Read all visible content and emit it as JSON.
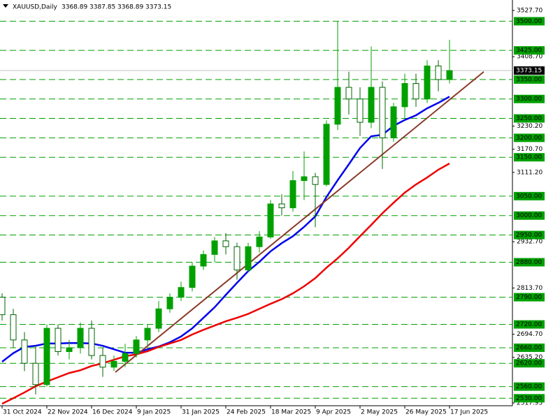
{
  "chart_data": {
    "type": "candlestick",
    "header": {
      "symbol": "XAUUSD,Daily",
      "ohlc": [
        3368.89,
        3387.85,
        3368.89,
        3373.15
      ]
    },
    "categories": [
      "31 Oct 2024",
      null,
      null,
      null,
      "22 Nov 2024",
      null,
      null,
      null,
      "16 Dec 2024",
      null,
      null,
      null,
      "9 Jan 2025",
      null,
      null,
      null,
      "31 Jan 2025",
      null,
      null,
      null,
      "24 Feb 2025",
      null,
      null,
      null,
      "18 Mar 2025",
      null,
      null,
      null,
      "9 Apr 2025",
      null,
      null,
      null,
      "2 May 2025",
      null,
      null,
      null,
      "26 May 2025",
      null,
      null,
      null,
      "17 Jun 2025"
    ],
    "open": [
      2790,
      2745,
      2680,
      2620,
      2565,
      2710,
      2650,
      2660,
      2710,
      2640,
      2610,
      2625,
      2645,
      2680,
      2710,
      2760,
      2790,
      2815,
      2870,
      2900,
      2935,
      2920,
      2860,
      2920,
      2945,
      3030,
      3020,
      3090,
      3100,
      3080,
      3235,
      3330,
      3300,
      3240,
      3330,
      3200,
      3280,
      3340,
      3300,
      3385,
      3350
    ],
    "high": [
      2800,
      2760,
      2700,
      2665,
      2720,
      2720,
      2680,
      2725,
      2730,
      2660,
      2640,
      2670,
      2690,
      2720,
      2780,
      2800,
      2830,
      2880,
      2910,
      2945,
      2955,
      2930,
      2930,
      2960,
      3040,
      3055,
      3115,
      3165,
      3110,
      3245,
      3500,
      3370,
      3330,
      3435,
      3345,
      3290,
      3365,
      3365,
      3400,
      3400,
      3452
    ],
    "low": [
      2730,
      2660,
      2600,
      2540,
      2560,
      2640,
      2630,
      2645,
      2630,
      2585,
      2600,
      2610,
      2635,
      2665,
      2700,
      2750,
      2780,
      2805,
      2860,
      2880,
      2900,
      2835,
      2855,
      2905,
      2940,
      3000,
      3010,
      3040,
      2970,
      3075,
      3220,
      3260,
      3205,
      3225,
      3120,
      3190,
      3250,
      3280,
      3290,
      3320,
      3340
    ],
    "close": [
      2745,
      2680,
      2620,
      2565,
      2710,
      2650,
      2660,
      2710,
      2640,
      2610,
      2625,
      2645,
      2680,
      2710,
      2760,
      2790,
      2815,
      2870,
      2900,
      2935,
      2920,
      2860,
      2920,
      2945,
      3030,
      3020,
      3090,
      3100,
      3080,
      3235,
      3330,
      3300,
      3240,
      3330,
      3200,
      3280,
      3340,
      3300,
      3385,
      3350,
      3373.15
    ],
    "up_color": "#00a000",
    "down_color": "#006400",
    "series": [
      {
        "color": "#0000ee",
        "values": [
          2624,
          2646,
          2662,
          2665,
          2671,
          2671,
          2672,
          2672,
          2671,
          2665,
          2656,
          2647,
          2647,
          2656,
          2663,
          2674,
          2689,
          2710,
          2737,
          2764,
          2796,
          2827,
          2857,
          2881,
          2908,
          2929,
          2947,
          2971,
          2998,
          3048,
          3091,
          3132,
          3174,
          3204,
          3208,
          3231,
          3246,
          3258,
          3276,
          3290,
          3306
        ]
      },
      {
        "color": "#ee0000",
        "values": [
          2516,
          2530,
          2545,
          2561,
          2573,
          2584,
          2595,
          2602,
          2613,
          2620,
          2629,
          2638,
          2643,
          2651,
          2662,
          2671,
          2680,
          2694,
          2706,
          2717,
          2728,
          2737,
          2747,
          2760,
          2773,
          2785,
          2800,
          2818,
          2839,
          2866,
          2890,
          2917,
          2947,
          2976,
          3006,
          3033,
          3059,
          3080,
          3098,
          3118,
          3134
        ]
      }
    ],
    "trendline": {
      "from": 2597,
      "to": 3370,
      "color": "#8b3a2a"
    },
    "current_price": 3373.15,
    "levels": [
      {
        "value": 3500,
        "label": "3500.00"
      },
      {
        "value": 3425,
        "label": "3425.00"
      },
      {
        "value": 3350,
        "label": "3350.00"
      },
      {
        "value": 3300,
        "label": "3300.00"
      },
      {
        "value": 3250,
        "label": "3250.00"
      },
      {
        "value": 3200,
        "label": "3200.00"
      },
      {
        "value": 3150,
        "label": "3150.00"
      },
      {
        "value": 3050,
        "label": "3050.00"
      },
      {
        "value": 3000,
        "label": "3000.00"
      },
      {
        "value": 2950,
        "label": "2950.00"
      },
      {
        "value": 2880,
        "label": "2880.00"
      },
      {
        "value": 2790,
        "label": "2790.00"
      },
      {
        "value": 2720,
        "label": "2720.00"
      },
      {
        "value": 2660,
        "label": "2660.00"
      },
      {
        "value": 2620,
        "label": "2620.00"
      },
      {
        "value": 2560,
        "label": "2560.00"
      },
      {
        "value": 2530,
        "label": "2530.00"
      }
    ],
    "level_color": "#00a000",
    "ylim": [
      2517.95,
      3527.7
    ],
    "yticks": [
      {
        "value": 2517.95,
        "label": "2517.95"
      },
      {
        "value": 2635.2,
        "label": "2635.20"
      },
      {
        "value": 2694.7,
        "label": "2694.70"
      },
      {
        "value": 2813.7,
        "label": "2813.70"
      },
      {
        "value": 2932.7,
        "label": "2932.70"
      },
      {
        "value": 3111.2,
        "label": "3111.20"
      },
      {
        "value": 3170.7,
        "label": "3170.70"
      },
      {
        "value": 3230.2,
        "label": "3230.20"
      },
      {
        "value": 3408.7,
        "label": "3408.70"
      },
      {
        "value": 3527.7,
        "label": "3527.70"
      }
    ]
  }
}
